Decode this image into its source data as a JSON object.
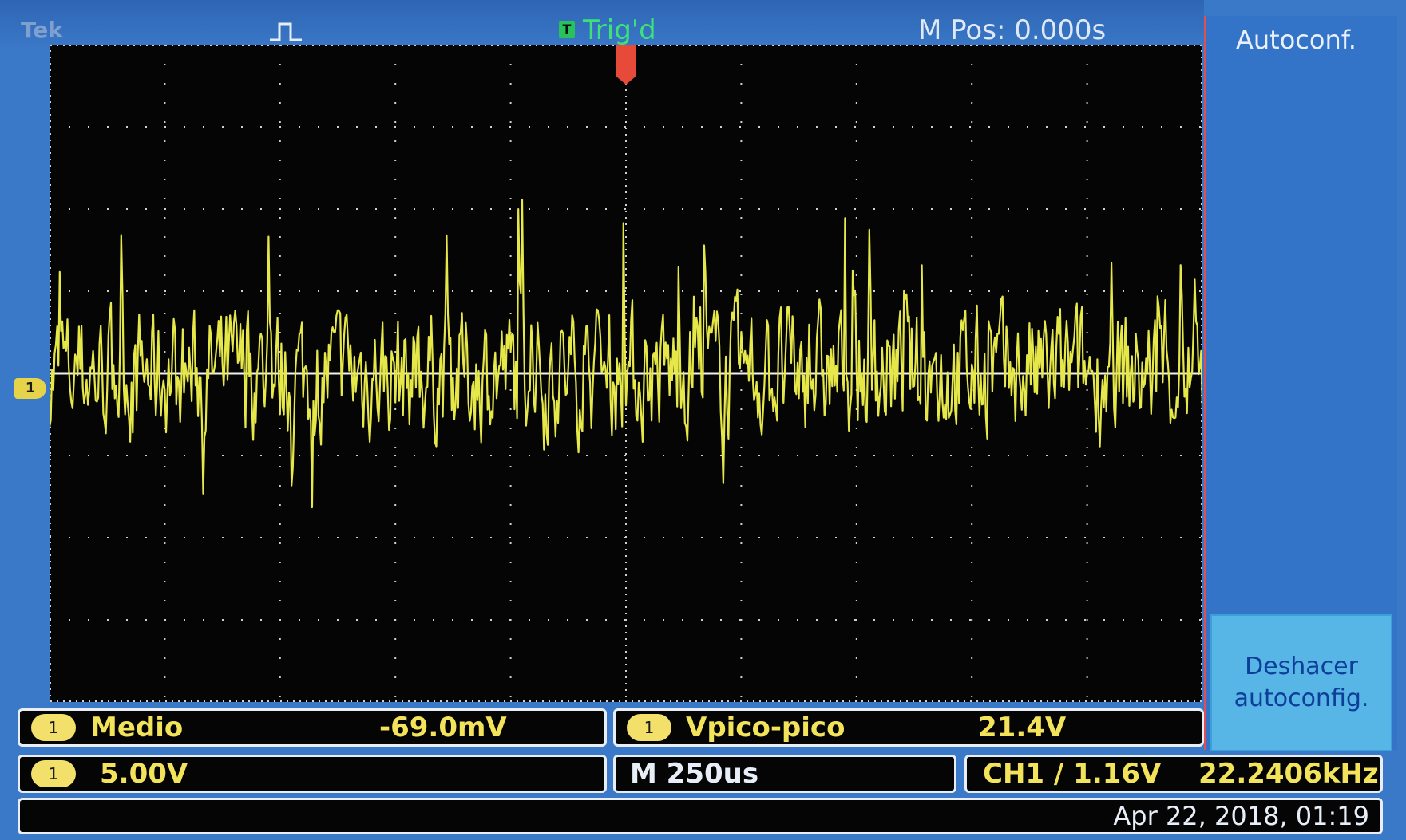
{
  "header": {
    "brand": "Tek",
    "pulse_icon": "pulse-icon",
    "trigger_status": "Trig'd",
    "trigger_icon_letter": "T",
    "mpos": "M Pos: 0.000s"
  },
  "display": {
    "ch1_marker": "1",
    "colors": {
      "trace": "#e6e84a",
      "grid": "#d0d0d0",
      "trigger_marker": "#e84a3a",
      "background": "#050505"
    }
  },
  "side_menu": {
    "autoconf": "Autoconf.",
    "undo_line1": "Deshacer",
    "undo_line2": "autoconfig."
  },
  "measurements": {
    "mean": {
      "channel": "1",
      "label": "Medio",
      "value": "-69.0mV"
    },
    "vpp": {
      "channel": "1",
      "label": "Vpico-pico",
      "value": "21.4V"
    }
  },
  "status": {
    "ch1_channel": "1",
    "ch1_scale": "5.00V",
    "timebase": "M 250us",
    "trigger": "CH1 ∕ 1.16V",
    "frequency": "22.2406kHz",
    "datetime": "Apr 22, 2018, 01:19"
  }
}
